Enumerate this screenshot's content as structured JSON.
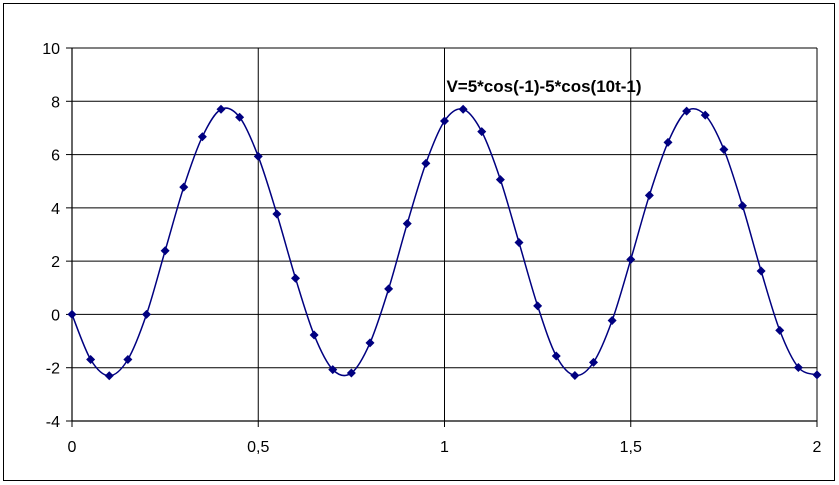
{
  "chart_data": {
    "type": "line",
    "title": "V=5*cos(-1)-5*cos(10t-1)",
    "xlabel": "",
    "ylabel": "",
    "xlim": [
      0,
      2
    ],
    "ylim": [
      -4,
      10
    ],
    "x_ticks": [
      0,
      0.5,
      1,
      1.5,
      2
    ],
    "x_tick_labels": [
      "0",
      "0,5",
      "1",
      "1,5",
      "2"
    ],
    "y_ticks": [
      -4,
      -2,
      0,
      2,
      4,
      6,
      8,
      10
    ],
    "y_tick_labels": [
      "-4",
      "-2",
      "0",
      "2",
      "4",
      "6",
      "8",
      "10"
    ],
    "grid": true,
    "legend": "none",
    "series": [
      {
        "color": "#000080",
        "marker": "diamond",
        "smooth": true,
        "x": [
          0,
          0.05,
          0.1,
          0.15,
          0.2,
          0.25,
          0.3,
          0.35,
          0.4,
          0.45,
          0.5,
          0.55,
          0.6,
          0.65,
          0.7,
          0.75,
          0.8,
          0.85,
          0.9,
          0.95,
          1.0,
          1.05,
          1.1,
          1.15,
          1.2,
          1.25,
          1.3,
          1.35,
          1.4,
          1.45,
          1.5,
          1.55,
          1.6,
          1.65,
          1.7,
          1.75,
          1.8,
          1.85,
          1.9,
          1.95,
          2.0
        ],
        "y": [
          0,
          -1.69,
          -2.3,
          -1.69,
          0,
          2.39,
          4.78,
          6.67,
          7.7,
          7.4,
          5.93,
          3.77,
          1.36,
          -0.77,
          -2.07,
          -2.2,
          -1.07,
          0.96,
          3.41,
          5.67,
          7.26,
          7.7,
          6.86,
          5.06,
          2.7,
          0.32,
          -1.56,
          -2.29,
          -1.8,
          -0.23,
          2.06,
          4.47,
          6.46,
          7.63,
          7.48,
          6.19,
          4.08,
          1.63,
          -0.6,
          -1.99,
          -2.27
        ]
      }
    ]
  }
}
